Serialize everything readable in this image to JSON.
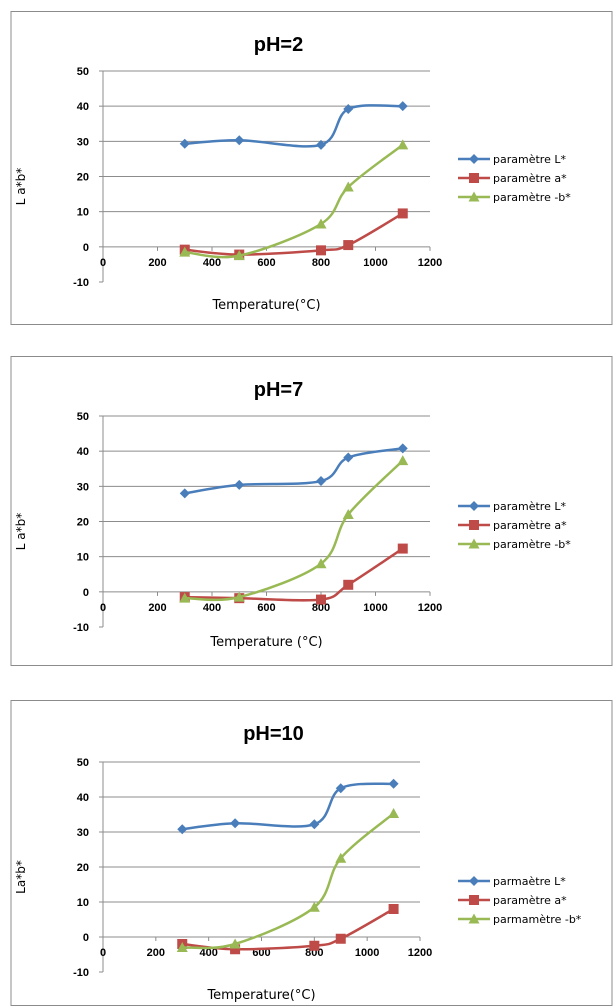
{
  "chart_data": [
    {
      "type": "line",
      "title": "pH=2",
      "xlabel": "Temperature(°C)",
      "ylabel": "L a*b*",
      "xlim": [
        0,
        1200
      ],
      "ylim": [
        -10,
        50
      ],
      "xticks": [
        0,
        200,
        400,
        600,
        800,
        1000,
        1200
      ],
      "yticks": [
        -10,
        0,
        10,
        20,
        30,
        40,
        50
      ],
      "x": [
        300,
        500,
        800,
        900,
        1100
      ],
      "series": [
        {
          "name": "paramètre L*",
          "color": "#4a7ebb",
          "marker": "diamond",
          "values": [
            29.3,
            30.3,
            29.0,
            39.2,
            40.0
          ]
        },
        {
          "name": "paramètre a*",
          "color": "#be4b48",
          "marker": "square",
          "values": [
            -0.8,
            -2.2,
            -1.0,
            0.5,
            9.5
          ]
        },
        {
          "name": "paramètre -b*",
          "color": "#98b954",
          "marker": "triangle",
          "values": [
            -1.5,
            -2.5,
            6.5,
            17.0,
            29.0
          ]
        }
      ],
      "grid": true,
      "legend": "right"
    },
    {
      "type": "line",
      "title": "pH=7",
      "xlabel": "Temperature (°C)",
      "ylabel": "L a*b*",
      "xlim": [
        0,
        1200
      ],
      "ylim": [
        -10,
        50
      ],
      "xticks": [
        0,
        200,
        400,
        600,
        800,
        1000,
        1200
      ],
      "yticks": [
        -10,
        0,
        10,
        20,
        30,
        40,
        50
      ],
      "x": [
        300,
        500,
        800,
        900,
        1100
      ],
      "series": [
        {
          "name": "paramètre L*",
          "color": "#4a7ebb",
          "marker": "diamond",
          "values": [
            28.0,
            30.4,
            31.5,
            38.2,
            40.8
          ]
        },
        {
          "name": "paramètre a*",
          "color": "#be4b48",
          "marker": "square",
          "values": [
            -1.5,
            -1.8,
            -2.2,
            2.0,
            12.3
          ]
        },
        {
          "name": "paramètre -b*",
          "color": "#98b954",
          "marker": "triangle",
          "values": [
            -1.8,
            -1.5,
            8.0,
            22.0,
            37.3
          ]
        }
      ],
      "grid": true,
      "legend": "right"
    },
    {
      "type": "line",
      "title": "pH=10",
      "xlabel": "Temperature(°C)",
      "ylabel": "La*b*",
      "xlim": [
        0,
        1200
      ],
      "ylim": [
        -10,
        50
      ],
      "xticks": [
        0,
        200,
        400,
        600,
        800,
        1000,
        1200
      ],
      "yticks": [
        -10,
        0,
        10,
        20,
        30,
        40,
        50
      ],
      "x": [
        300,
        500,
        800,
        900,
        1100
      ],
      "series": [
        {
          "name": "parmaètre L*",
          "color": "#4a7ebb",
          "marker": "diamond",
          "values": [
            30.8,
            32.5,
            32.2,
            42.5,
            43.8
          ]
        },
        {
          "name": "paramètre a*",
          "color": "#be4b48",
          "marker": "square",
          "values": [
            -2.0,
            -3.5,
            -2.5,
            -0.5,
            8.0
          ]
        },
        {
          "name": "parmamètre -b*",
          "color": "#98b954",
          "marker": "triangle",
          "values": [
            -3.0,
            -2.0,
            8.5,
            22.5,
            35.3
          ]
        }
      ],
      "grid": true,
      "legend": "right"
    }
  ]
}
